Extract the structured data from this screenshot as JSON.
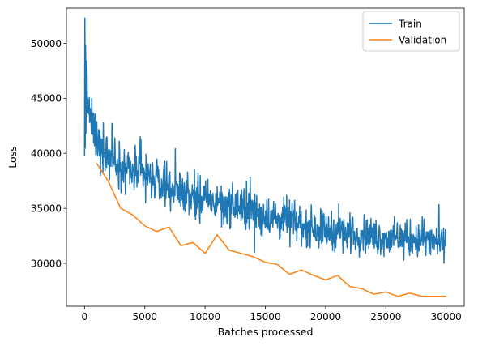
{
  "chart_data": {
    "type": "line",
    "title": "",
    "xlabel": "Batches processed",
    "ylabel": "Loss",
    "xlim": [
      -1500,
      31500
    ],
    "ylim": [
      26100,
      53200
    ],
    "x_ticks": [
      0,
      5000,
      10000,
      15000,
      20000,
      25000,
      30000
    ],
    "y_ticks": [
      30000,
      35000,
      40000,
      45000,
      50000
    ],
    "grid": false,
    "legend_position": "top-right",
    "colors": {
      "train": "#1f77b4",
      "validation": "#ff7f0e",
      "axis": "#000000",
      "background": "#ffffff"
    },
    "series": [
      {
        "name": "Train",
        "color": "#1f77b4",
        "noisy_trend": {
          "x": [
            0,
            100,
            300,
            500,
            1000,
            2000,
            3000,
            4000,
            5000,
            6000,
            7000,
            8000,
            9000,
            10000,
            11000,
            12000,
            13000,
            14000,
            15000,
            16000,
            17000,
            18000,
            19000,
            20000,
            21000,
            22000,
            23000,
            24000,
            25000,
            26000,
            27000,
            28000,
            29000,
            30000
          ],
          "center": [
            46000,
            45500,
            44500,
            43000,
            41200,
            40000,
            39000,
            38300,
            37900,
            37500,
            37000,
            36500,
            36100,
            35800,
            35500,
            35200,
            35000,
            34600,
            34400,
            34000,
            33800,
            33500,
            33300,
            33000,
            32900,
            32700,
            32600,
            32500,
            32300,
            32200,
            32200,
            32100,
            32000,
            31800
          ],
          "amplitude": [
            6000,
            5000,
            3000,
            2600,
            2400,
            2300,
            2200,
            2100,
            2100,
            2000,
            2000,
            2000,
            2000,
            2000,
            2000,
            2000,
            2000,
            2000,
            2000,
            2000,
            1900,
            1900,
            1900,
            1900,
            1800,
            1800,
            1800,
            1800,
            1800,
            1800,
            1800,
            1800,
            1800,
            1400
          ]
        }
      },
      {
        "name": "Validation",
        "color": "#ff7f0e",
        "x": [
          1000,
          2000,
          3000,
          4000,
          5000,
          6000,
          7000,
          8000,
          9000,
          10000,
          11000,
          12000,
          13000,
          14000,
          15000,
          16000,
          17000,
          18000,
          19000,
          20000,
          21000,
          22000,
          23000,
          24000,
          25000,
          26000,
          27000,
          28000,
          29000,
          30000
        ],
        "y": [
          39100,
          37400,
          35000,
          34400,
          33400,
          32900,
          33300,
          31600,
          31900,
          30900,
          32600,
          31200,
          30900,
          30600,
          30100,
          29900,
          29000,
          29400,
          28900,
          28500,
          28900,
          27900,
          27700,
          27200,
          27400,
          27000,
          27300,
          27000,
          27000,
          27000
        ]
      }
    ]
  }
}
